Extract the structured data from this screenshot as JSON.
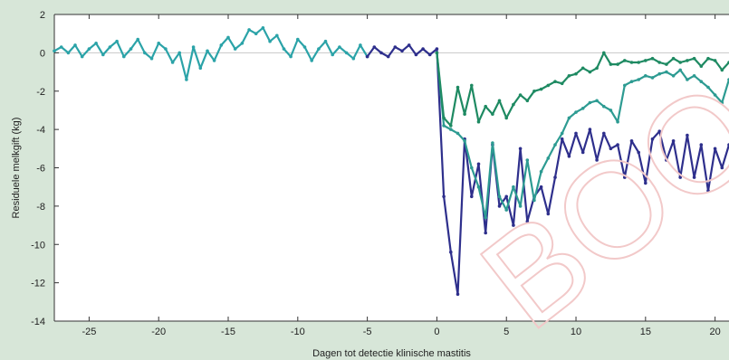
{
  "chart_data": {
    "type": "line",
    "xlabel": "Dagen tot detectie klinische mastitis",
    "ylabel": "Residuele melkgift (kg)",
    "xlim": [
      -27.5,
      21
    ],
    "ylim": [
      -14,
      2
    ],
    "xticks": [
      -25,
      -20,
      -15,
      -10,
      -5,
      0,
      5,
      10,
      15,
      20
    ],
    "xtick_labels": [
      "-25",
      "-20",
      "-15",
      "-10",
      "-5",
      "0",
      "5",
      "10",
      "15",
      "20"
    ],
    "yticks": [
      2,
      0,
      -2,
      -4,
      -6,
      -8,
      -10,
      -12,
      -14
    ],
    "ytick_labels": [
      "2",
      "0",
      "-2",
      "-4",
      "-6",
      "-8",
      "-10",
      "-12",
      "-14"
    ],
    "grid": "horizontal line at y=0",
    "legend": "none",
    "watermark": "BOO",
    "series": [
      {
        "color": "#2ba3a8",
        "x": [
          -27.5,
          -27,
          -26.5,
          -26,
          -25.5,
          -25,
          -24.5,
          -24,
          -23.5,
          -23,
          -22.5,
          -22,
          -21.5,
          -21,
          -20.5,
          -20,
          -19.5,
          -19,
          -18.5,
          -18,
          -17.5,
          -17,
          -16.5,
          -16,
          -15.5,
          -15,
          -14.5,
          -14,
          -13.5,
          -13,
          -12.5,
          -12,
          -11.5,
          -11,
          -10.5,
          -10,
          -9.5,
          -9,
          -8.5,
          -8,
          -7.5,
          -7,
          -6.5,
          -6,
          -5.5,
          -5
        ],
        "y": [
          0.1,
          0.3,
          0.0,
          0.4,
          -0.2,
          0.2,
          0.5,
          -0.1,
          0.3,
          0.6,
          -0.2,
          0.2,
          0.7,
          0.0,
          -0.3,
          0.5,
          0.2,
          -0.5,
          0.0,
          -1.4,
          0.3,
          -0.8,
          0.1,
          -0.4,
          0.4,
          0.8,
          0.2,
          0.5,
          1.2,
          1.0,
          1.3,
          0.6,
          0.9,
          0.2,
          -0.2,
          0.7,
          0.3,
          -0.4,
          0.2,
          0.6,
          -0.1,
          0.3,
          0.0,
          -0.3,
          0.4,
          -0.2
        ]
      },
      {
        "color": "#2e2f8c",
        "x": [
          -5,
          -4.5,
          -4,
          -3.5,
          -3,
          -2.5,
          -2,
          -1.5,
          -1,
          -0.5,
          0,
          0.5,
          1,
          1.5,
          2,
          2.5,
          3,
          3.5,
          4,
          4.5,
          5,
          5.5,
          6,
          6.5,
          7,
          7.5,
          8,
          8.5,
          9,
          9.5,
          10,
          10.5,
          11,
          11.5,
          12,
          12.5,
          13,
          13.5,
          14,
          14.5,
          15,
          15.5,
          16,
          16.5,
          17,
          17.5,
          18,
          18.5,
          19,
          19.5,
          20,
          20.5,
          21
        ],
        "y": [
          -0.2,
          0.3,
          0.0,
          -0.2,
          0.3,
          0.1,
          0.4,
          -0.1,
          0.2,
          -0.1,
          0.2,
          -7.5,
          -10.4,
          -12.6,
          -4.5,
          -7.5,
          -5.8,
          -9.4,
          -4.8,
          -8.0,
          -7.5,
          -9.0,
          -5.0,
          -8.8,
          -7.5,
          -7.0,
          -8.4,
          -6.5,
          -4.5,
          -5.4,
          -4.2,
          -5.2,
          -4.0,
          -5.6,
          -4.2,
          -5.0,
          -4.8,
          -6.5,
          -4.6,
          -5.2,
          -6.8,
          -4.5,
          -4.1,
          -5.6,
          -4.6,
          -6.5,
          -4.3,
          -6.5,
          -4.8,
          -7.2,
          -5.0,
          -6.0,
          -4.8
        ]
      },
      {
        "color": "#2d9b92",
        "x": [
          0,
          0.5,
          1,
          1.5,
          2,
          2.5,
          3,
          3.5,
          4,
          4.5,
          5,
          5.5,
          6,
          6.5,
          7,
          7.5,
          8,
          8.5,
          9,
          9.5,
          10,
          10.5,
          11,
          11.5,
          12,
          12.5,
          13,
          13.5,
          14,
          14.5,
          15,
          15.5,
          16,
          16.5,
          17,
          17.5,
          18,
          18.5,
          19,
          19.5,
          20,
          20.5,
          21
        ],
        "y": [
          0.0,
          -3.8,
          -4.0,
          -4.2,
          -4.6,
          -6.0,
          -7.0,
          -8.6,
          -4.7,
          -7.5,
          -8.2,
          -7.0,
          -8.0,
          -5.6,
          -7.7,
          -6.2,
          -5.5,
          -4.8,
          -4.2,
          -3.4,
          -3.1,
          -2.9,
          -2.6,
          -2.5,
          -2.8,
          -3.0,
          -3.6,
          -1.7,
          -1.5,
          -1.4,
          -1.2,
          -1.3,
          -1.1,
          -1.0,
          -1.2,
          -0.9,
          -1.4,
          -1.2,
          -1.5,
          -1.8,
          -2.2,
          -2.6,
          -1.4
        ]
      },
      {
        "color": "#1e8a62",
        "x": [
          0,
          0.5,
          1,
          1.5,
          2,
          2.5,
          3,
          3.5,
          4,
          4.5,
          5,
          5.5,
          6,
          6.5,
          7,
          7.5,
          8,
          8.5,
          9,
          9.5,
          10,
          10.5,
          11,
          11.5,
          12,
          12.5,
          13,
          13.5,
          14,
          14.5,
          15,
          15.5,
          16,
          16.5,
          17,
          17.5,
          18,
          18.5,
          19,
          19.5,
          20,
          20.5,
          21
        ],
        "y": [
          0.0,
          -3.4,
          -3.8,
          -1.8,
          -3.2,
          -1.7,
          -3.6,
          -2.8,
          -3.2,
          -2.5,
          -3.4,
          -2.7,
          -2.2,
          -2.5,
          -2.0,
          -1.9,
          -1.7,
          -1.5,
          -1.6,
          -1.2,
          -1.1,
          -0.8,
          -1.0,
          -0.8,
          0.0,
          -0.6,
          -0.6,
          -0.4,
          -0.5,
          -0.5,
          -0.4,
          -0.3,
          -0.5,
          -0.6,
          -0.3,
          -0.5,
          -0.4,
          -0.3,
          -0.7,
          -0.3,
          -0.4,
          -0.9,
          -0.5
        ]
      }
    ]
  }
}
